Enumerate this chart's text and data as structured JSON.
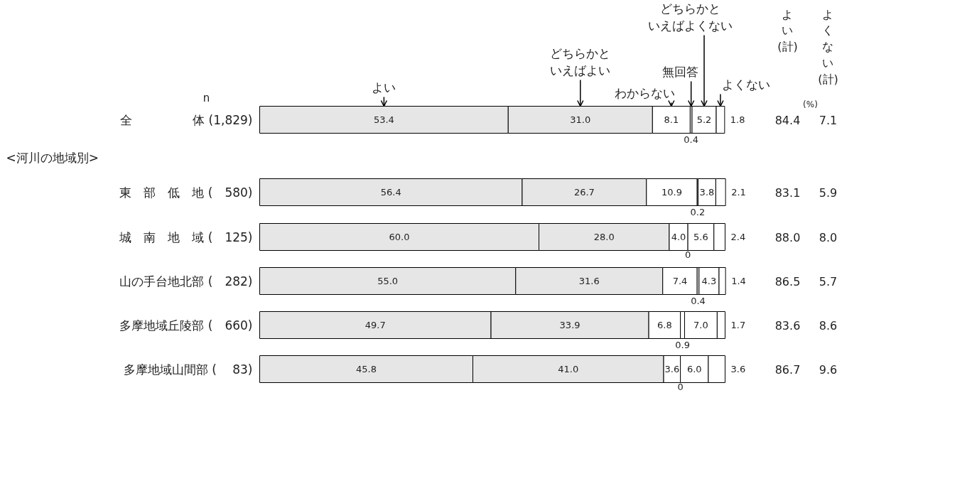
{
  "chart_data": {
    "type": "bar",
    "orientation": "horizontal",
    "stacked": true,
    "legend": "top",
    "grid": false,
    "categories": [
      "全　　　　　体 (1,829)",
      "東　部　低　地 (　580)",
      "城　南　地　域 (　125)",
      "山の手台地北部 (　282)",
      "多摩地域丘陵部 (　660)",
      "多摩地域山間部 (　 83)"
    ],
    "series": [
      {
        "name": "よい",
        "color": "#e6e6e6",
        "values": [
          53.4,
          56.4,
          60.0,
          55.0,
          49.7,
          45.8
        ],
        "value_labels": [
          "53.4",
          "56.4",
          "60.0",
          "55.0",
          "49.7",
          "45.8"
        ]
      },
      {
        "name": "どちらかといえばよい",
        "color": "#e6e6e6",
        "values": [
          31.0,
          26.7,
          28.0,
          31.6,
          33.9,
          41.0
        ],
        "value_labels": [
          "31.0",
          "26.7",
          "28.0",
          "31.6",
          "33.9",
          "41.0"
        ]
      },
      {
        "name": "わからない",
        "color": "#ffffff",
        "values": [
          8.1,
          10.9,
          4.0,
          7.4,
          6.8,
          3.6
        ],
        "value_labels": [
          "8.1",
          "10.9",
          "4.0",
          "7.4",
          "6.8",
          "3.6"
        ]
      },
      {
        "name": "無回答",
        "color": "#ffffff",
        "values": [
          0.4,
          0.2,
          0,
          0.4,
          0.9,
          0
        ],
        "value_labels": [
          "0.4",
          "0.2",
          null,
          "0.4",
          "0.9",
          null
        ]
      },
      {
        "name": "どちらかといえばよくない",
        "color": "#ffffff",
        "values": [
          5.2,
          3.8,
          5.6,
          4.3,
          7.0,
          6.0
        ],
        "value_labels": [
          "5.2",
          "3.8",
          "5.6",
          "4.3",
          "7.0",
          "6.0"
        ]
      },
      {
        "name": "よくない",
        "color": "#ffffff",
        "values": [
          1.8,
          2.1,
          2.4,
          1.4,
          1.7,
          3.6
        ],
        "value_labels": [
          "1.8",
          "2.1",
          "2.4",
          "1.4",
          "1.7",
          "3.6"
        ]
      }
    ],
    "annotations": [
      "n",
      "(%)",
      "<河川の地域別>",
      "よい(計)",
      "よくない(計)",
      "84.4",
      "7.1",
      "83.1",
      "5.9",
      "88.0",
      "8.0",
      "86.5",
      "5.7",
      "83.6",
      "8.6",
      "86.7",
      "9.6",
      {
        "text": "0",
        "x": 92.0,
        "y": "城　南　地　域 (　125)"
      },
      {
        "text": "0",
        "x": 90.4,
        "y": "多摩地域山間部 (　 83)"
      }
    ]
  }
}
